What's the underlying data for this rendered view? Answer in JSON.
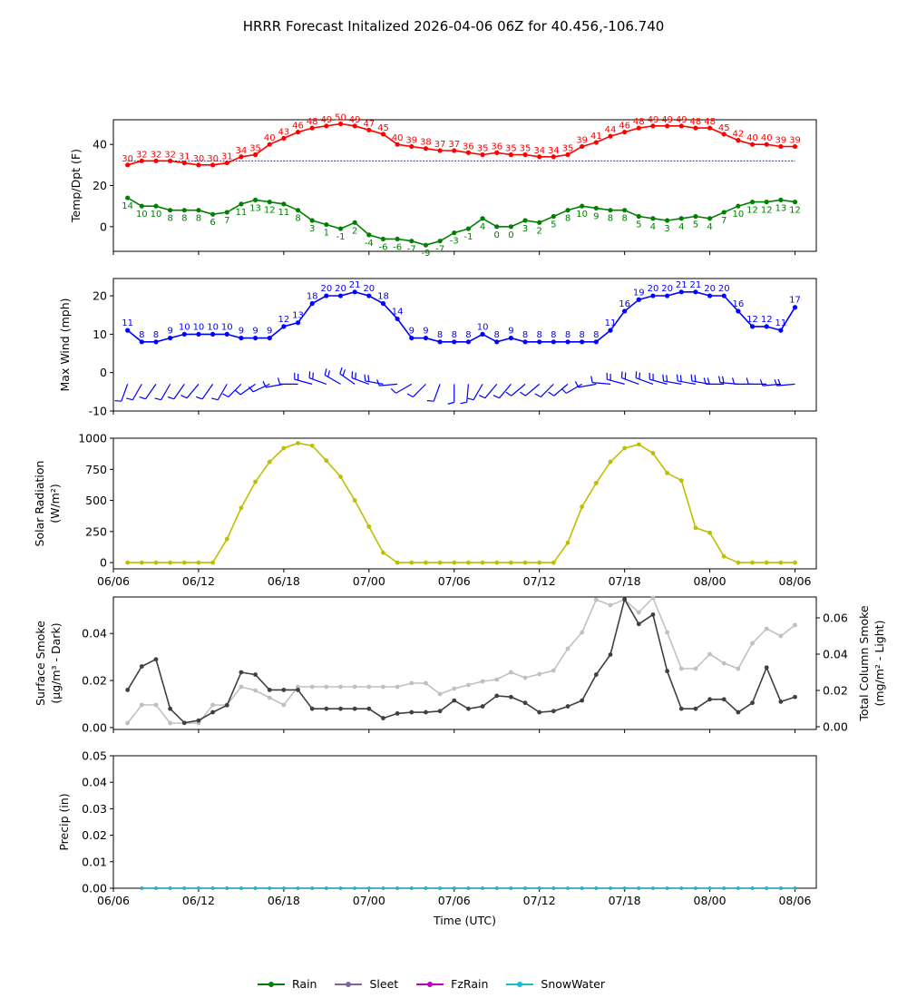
{
  "title": "HRRR Forecast Initalized 2026-04-06 06Z for 40.456,-106.740",
  "colors": {
    "temp": "#ff0000",
    "dewpoint": "#008000",
    "wind": "#0000ff",
    "solar": "#bfbf00",
    "smoke_dark": "#404040",
    "smoke_light": "#c0c0c0",
    "rain": "#008000",
    "sleet": "#8064a2",
    "fzrain": "#bf00bf",
    "snowwater": "#17becf"
  },
  "legend": [
    {
      "label": "Rain",
      "color": "#008000"
    },
    {
      "label": "Sleet",
      "color": "#8064a2"
    },
    {
      "label": "FzRain",
      "color": "#bf00bf"
    },
    {
      "label": "SnowWater",
      "color": "#17becf"
    }
  ],
  "chart_data": [
    {
      "type": "line",
      "ylabel": "Temp/Dpt (F)",
      "x_hours_start": 1,
      "ylim": [
        -12,
        52
      ],
      "yticks": [
        0,
        20,
        40
      ],
      "reference_line": 32,
      "series": [
        {
          "name": "Temp",
          "values": [
            30,
            32,
            32,
            32,
            31,
            30,
            30,
            31,
            34,
            35,
            40,
            43,
            46,
            48,
            49,
            50,
            49,
            47,
            45,
            40,
            39,
            38,
            37,
            37,
            36,
            35,
            36,
            35,
            35,
            34,
            34,
            35,
            39,
            41,
            44,
            46,
            48,
            49,
            49,
            49,
            48,
            48,
            45,
            42,
            40,
            40,
            39,
            39
          ]
        },
        {
          "name": "Dewpoint",
          "values": [
            14,
            10,
            10,
            8,
            8,
            8,
            6,
            7,
            11,
            13,
            12,
            11,
            8,
            3,
            1,
            -1,
            2,
            -4,
            -6,
            -6,
            -7,
            -9,
            -7,
            -3,
            -1,
            4,
            0,
            0,
            3,
            2,
            5,
            8,
            10,
            9,
            8,
            8,
            5,
            4,
            3,
            4,
            5,
            4,
            7,
            10,
            12,
            12,
            13,
            12
          ]
        }
      ]
    },
    {
      "type": "line",
      "ylabel": "Max Wind (mph)",
      "x_hours_start": 1,
      "ylim": [
        -10,
        24.5
      ],
      "yticks": [
        -10,
        0,
        10,
        20
      ],
      "series": [
        {
          "name": "Max Wind",
          "values": [
            11,
            8,
            8,
            9,
            10,
            10,
            10,
            10,
            9,
            9,
            9,
            12,
            13,
            18,
            20,
            20,
            21,
            20,
            18,
            14,
            9,
            9,
            8,
            8,
            8,
            10,
            8,
            9,
            8,
            8,
            8,
            8,
            8,
            8,
            11,
            16,
            19,
            20,
            20,
            21,
            21,
            20,
            20,
            16,
            12,
            12,
            11,
            17
          ]
        }
      ],
      "wind_barbs": {
        "direction_deg": [
          200,
          210,
          215,
          210,
          215,
          220,
          215,
          210,
          225,
          235,
          245,
          260,
          270,
          285,
          290,
          300,
          305,
          290,
          280,
          265,
          240,
          225,
          200,
          180,
          185,
          210,
          220,
          220,
          230,
          230,
          225,
          230,
          240,
          260,
          275,
          285,
          290,
          290,
          285,
          280,
          280,
          280,
          270,
          275,
          270,
          270,
          265,
          265
        ]
      }
    },
    {
      "type": "line",
      "ylabel": "Solar Radiation (W/m²)",
      "x_hours_start": 1,
      "ylim": [
        -50,
        1000
      ],
      "yticks": [
        0,
        250,
        500,
        750,
        1000
      ],
      "series": [
        {
          "name": "Solar",
          "values": [
            0,
            0,
            0,
            0,
            0,
            0,
            0,
            190,
            440,
            650,
            810,
            920,
            960,
            940,
            820,
            690,
            500,
            290,
            80,
            0,
            0,
            0,
            0,
            0,
            0,
            0,
            0,
            0,
            0,
            0,
            0,
            160,
            450,
            640,
            810,
            920,
            950,
            880,
            720,
            660,
            280,
            240,
            50,
            0,
            0,
            0,
            0,
            0
          ]
        }
      ]
    },
    {
      "type": "line",
      "ylabel": "Surface Smoke (μg/m³ - Dark)",
      "ylabel2": "Total Column Smoke (mg/m² - Light)",
      "x_hours_start": 1,
      "ylim": [
        -0.0008,
        0.0555
      ],
      "yticks": [
        0.0,
        0.02,
        0.04
      ],
      "y2lim": [
        -0.0015,
        0.0715
      ],
      "y2ticks": [
        0.0,
        0.02,
        0.04,
        0.06
      ],
      "series": [
        {
          "name": "Surface Smoke",
          "axis": "left",
          "values": [
            0.016,
            0.026,
            0.029,
            0.008,
            0.002,
            0.003,
            0.0065,
            0.0095,
            0.0235,
            0.0225,
            0.016,
            0.016,
            0.016,
            0.008,
            0.008,
            0.008,
            0.008,
            0.008,
            0.004,
            0.006,
            0.0065,
            0.0065,
            0.007,
            0.0115,
            0.008,
            0.009,
            0.0135,
            0.013,
            0.0105,
            0.0065,
            0.007,
            0.009,
            0.0115,
            0.0225,
            0.031,
            0.0545,
            0.044,
            0.048,
            0.024,
            0.008,
            0.008,
            0.012,
            0.012,
            0.0065,
            0.0105,
            0.0255,
            0.011,
            0.013
          ]
        },
        {
          "name": "Total Column Smoke",
          "axis": "right",
          "values": [
            0.002,
            0.012,
            0.012,
            0.002,
            0.002,
            0.002,
            0.012,
            0.012,
            0.022,
            0.02,
            0.016,
            0.012,
            0.022,
            0.022,
            0.022,
            0.022,
            0.022,
            0.022,
            0.022,
            0.022,
            0.024,
            0.024,
            0.018,
            0.021,
            0.023,
            0.025,
            0.026,
            0.03,
            0.027,
            0.029,
            0.031,
            0.043,
            0.052,
            0.07,
            0.067,
            0.07,
            0.063,
            0.071,
            0.052,
            0.032,
            0.032,
            0.04,
            0.035,
            0.032,
            0.046,
            0.054,
            0.05,
            0.056
          ]
        }
      ]
    },
    {
      "type": "line",
      "xlabel": "Time (UTC)",
      "ylabel": "Precip (in)",
      "x_hours_start": 2,
      "ylim": [
        0,
        0.05
      ],
      "yticks": [
        0.0,
        0.01,
        0.02,
        0.03,
        0.04,
        0.05
      ],
      "series": [
        {
          "name": "Rain",
          "values": [
            0,
            0,
            0,
            0,
            0,
            0,
            0,
            0,
            0,
            0,
            0,
            0,
            0,
            0,
            0,
            0,
            0,
            0,
            0,
            0,
            0,
            0,
            0,
            0,
            0,
            0,
            0,
            0,
            0,
            0,
            0,
            0,
            0,
            0,
            0,
            0,
            0,
            0,
            0,
            0,
            0,
            0,
            0,
            0,
            0,
            0,
            0
          ]
        },
        {
          "name": "Sleet",
          "values": [
            0,
            0,
            0,
            0,
            0,
            0,
            0,
            0,
            0,
            0,
            0,
            0,
            0,
            0,
            0,
            0,
            0,
            0,
            0,
            0,
            0,
            0,
            0,
            0,
            0,
            0,
            0,
            0,
            0,
            0,
            0,
            0,
            0,
            0,
            0,
            0,
            0,
            0,
            0,
            0,
            0,
            0,
            0,
            0,
            0,
            0,
            0
          ]
        },
        {
          "name": "FzRain",
          "values": [
            0,
            0,
            0,
            0,
            0,
            0,
            0,
            0,
            0,
            0,
            0,
            0,
            0,
            0,
            0,
            0,
            0,
            0,
            0,
            0,
            0,
            0,
            0,
            0,
            0,
            0,
            0,
            0,
            0,
            0,
            0,
            0,
            0,
            0,
            0,
            0,
            0,
            0,
            0,
            0,
            0,
            0,
            0,
            0,
            0,
            0,
            0
          ]
        },
        {
          "name": "SnowWater",
          "values": [
            0,
            0,
            0,
            0,
            0,
            0,
            0,
            0,
            0,
            0,
            0,
            0,
            0,
            0,
            0,
            0,
            0,
            0,
            0,
            0,
            0,
            0,
            0,
            0,
            0,
            0,
            0,
            0,
            0,
            0,
            0,
            0,
            0,
            0,
            0,
            0,
            0,
            0,
            0,
            0,
            0,
            0,
            0,
            0,
            0,
            0,
            0
          ]
        }
      ]
    }
  ],
  "x_axis": {
    "hours_range": [
      0,
      49.5
    ],
    "tick_hours": [
      0,
      6,
      12,
      18,
      24,
      30,
      36,
      42,
      48
    ],
    "tick_labels": [
      "06/06",
      "06/12",
      "06/18",
      "07/00",
      "07/06",
      "07/12",
      "07/18",
      "08/00",
      "08/06"
    ]
  }
}
